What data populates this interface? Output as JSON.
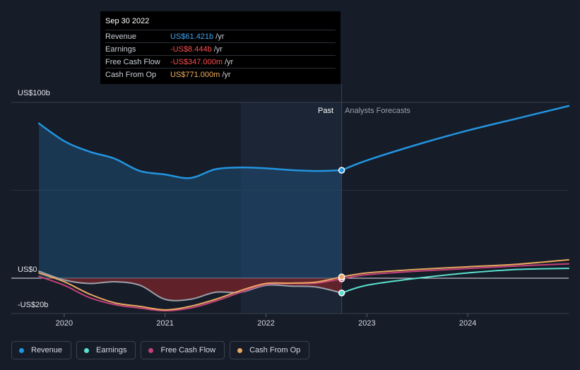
{
  "tooltip": {
    "date": "Sep 30 2022",
    "rows": [
      {
        "label": "Revenue",
        "value": "US$61.421b",
        "unit": "/yr",
        "color": "#3fa3f0"
      },
      {
        "label": "Earnings",
        "value": "-US$8.444b",
        "unit": "/yr",
        "color": "#ff4d4d"
      },
      {
        "label": "Free Cash Flow",
        "value": "-US$347.000m",
        "unit": "/yr",
        "color": "#ff4d4d"
      },
      {
        "label": "Cash From Op",
        "value": "US$771.000m",
        "unit": "/yr",
        "color": "#f0b060"
      }
    ]
  },
  "labels": {
    "past": "Past",
    "forecast": "Analysts Forecasts"
  },
  "legend": [
    {
      "label": "Revenue",
      "color": "#2394df"
    },
    {
      "label": "Earnings",
      "color": "#5be0d0"
    },
    {
      "label": "Free Cash Flow",
      "color": "#c2417a"
    },
    {
      "label": "Cash From Op",
      "color": "#e8a860"
    }
  ],
  "chart_data": {
    "type": "line",
    "yaxis_labels": [
      "US$100b",
      "US$0",
      "-US$20b"
    ],
    "ylim": [
      -20,
      100
    ],
    "xlim": [
      2019.7,
      2025.0
    ],
    "x_ticks": [
      2020,
      2021,
      2022,
      2023,
      2024
    ],
    "x_tick_labels": [
      "2020",
      "2021",
      "2022",
      "2023",
      "2024"
    ],
    "past_end": 2022.75,
    "highlight_start": 2021.75,
    "series": [
      {
        "name": "Revenue",
        "color": "#2394df",
        "points": [
          [
            2019.75,
            88
          ],
          [
            2020.0,
            78
          ],
          [
            2020.25,
            72
          ],
          [
            2020.5,
            68
          ],
          [
            2020.75,
            61
          ],
          [
            2021.0,
            59
          ],
          [
            2021.25,
            57
          ],
          [
            2021.5,
            62
          ],
          [
            2021.75,
            63
          ],
          [
            2022.0,
            62.5
          ],
          [
            2022.25,
            61.5
          ],
          [
            2022.5,
            61
          ],
          [
            2022.75,
            61.4
          ],
          [
            2023.0,
            67
          ],
          [
            2023.5,
            76
          ],
          [
            2024.0,
            84
          ],
          [
            2024.5,
            91
          ],
          [
            2025.0,
            98
          ]
        ]
      },
      {
        "name": "Earnings",
        "color": "#5be0d0",
        "points": [
          [
            2019.75,
            4
          ],
          [
            2020.0,
            -1
          ],
          [
            2020.25,
            -3
          ],
          [
            2020.5,
            -2
          ],
          [
            2020.75,
            -4
          ],
          [
            2021.0,
            -12
          ],
          [
            2021.25,
            -12
          ],
          [
            2021.5,
            -8
          ],
          [
            2021.75,
            -8
          ],
          [
            2022.0,
            -4
          ],
          [
            2022.25,
            -4.5
          ],
          [
            2022.5,
            -5
          ],
          [
            2022.75,
            -8.4
          ],
          [
            2023.0,
            -4
          ],
          [
            2023.5,
            0
          ],
          [
            2024.0,
            3
          ],
          [
            2024.5,
            5
          ],
          [
            2025.0,
            5.6
          ]
        ]
      },
      {
        "name": "Free Cash Flow",
        "color": "#c2417a",
        "points": [
          [
            2019.75,
            1
          ],
          [
            2020.0,
            -4
          ],
          [
            2020.25,
            -11
          ],
          [
            2020.5,
            -15
          ],
          [
            2020.75,
            -17
          ],
          [
            2021.0,
            -18.5
          ],
          [
            2021.25,
            -17
          ],
          [
            2021.5,
            -13
          ],
          [
            2021.75,
            -8
          ],
          [
            2022.0,
            -3.5
          ],
          [
            2022.25,
            -3
          ],
          [
            2022.5,
            -2.8
          ],
          [
            2022.75,
            -0.35
          ],
          [
            2023.0,
            2
          ],
          [
            2023.5,
            4
          ],
          [
            2024.0,
            5.5
          ],
          [
            2024.5,
            7
          ],
          [
            2025.0,
            8.2
          ]
        ]
      },
      {
        "name": "Cash From Op",
        "color": "#e8a860",
        "points": [
          [
            2019.75,
            3
          ],
          [
            2020.0,
            -2
          ],
          [
            2020.25,
            -9
          ],
          [
            2020.5,
            -14
          ],
          [
            2020.75,
            -16
          ],
          [
            2021.0,
            -18
          ],
          [
            2021.25,
            -16
          ],
          [
            2021.5,
            -12
          ],
          [
            2021.75,
            -7
          ],
          [
            2022.0,
            -3
          ],
          [
            2022.25,
            -2.8
          ],
          [
            2022.5,
            -2.2
          ],
          [
            2022.75,
            0.77
          ],
          [
            2023.0,
            3
          ],
          [
            2023.5,
            5
          ],
          [
            2024.0,
            6.5
          ],
          [
            2024.5,
            8
          ],
          [
            2025.0,
            10.5
          ]
        ]
      }
    ]
  }
}
